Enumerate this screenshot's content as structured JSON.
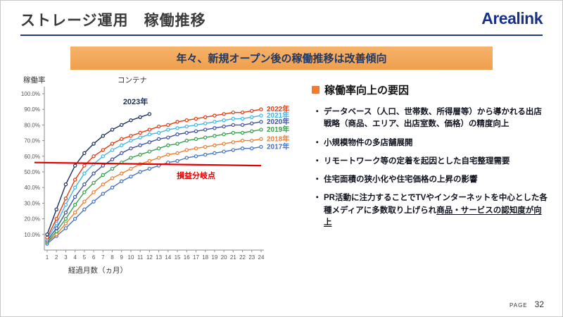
{
  "page": {
    "title": "ストレージ運用　稼働推移",
    "logo": "Arealink",
    "banner": "年々、新規オープン後の稼働推移は改善傾向",
    "footer_label": "PAGE",
    "footer_number": "32"
  },
  "chart_data": {
    "type": "line",
    "title": "コンテナ",
    "ylabel": "稼働率",
    "xlabel": "経過月数（ヵ月）",
    "ylim": [
      0,
      100
    ],
    "yticks": [
      "10.0%",
      "20.0%",
      "30.0%",
      "40.0%",
      "50.0%",
      "60.0%",
      "70.0%",
      "80.0%",
      "90.0%",
      "100.0%"
    ],
    "x": [
      1,
      2,
      3,
      4,
      5,
      6,
      7,
      8,
      9,
      10,
      11,
      12,
      13,
      14,
      15,
      16,
      17,
      18,
      19,
      20,
      21,
      22,
      23,
      24
    ],
    "series": [
      {
        "name": "2017年",
        "color": "#4472c4",
        "label_right": true,
        "values": [
          4,
          9,
          14,
          20,
          26,
          31,
          36,
          40,
          44,
          47,
          50,
          52,
          54,
          56,
          57,
          59,
          60,
          61,
          62,
          63,
          64,
          65,
          65,
          66
        ]
      },
      {
        "name": "2018年",
        "color": "#ed7d31",
        "label_right": true,
        "values": [
          5,
          10,
          17,
          24,
          31,
          37,
          42,
          46,
          49,
          52,
          55,
          57,
          59,
          61,
          62,
          64,
          65,
          66,
          67,
          68,
          69,
          70,
          70,
          71
        ]
      },
      {
        "name": "2019年",
        "color": "#34a04a",
        "label_right": true,
        "values": [
          5,
          12,
          20,
          29,
          37,
          43,
          48,
          52,
          56,
          59,
          61,
          63,
          65,
          67,
          68,
          70,
          71,
          72,
          73,
          74,
          75,
          75,
          76,
          77
        ]
      },
      {
        "name": "2020年",
        "color": "#3f51a3",
        "label_right": true,
        "values": [
          6,
          14,
          24,
          34,
          42,
          49,
          54,
          58,
          62,
          65,
          67,
          69,
          71,
          72,
          74,
          75,
          76,
          77,
          78,
          79,
          80,
          80,
          81,
          82
        ]
      },
      {
        "name": "2021年",
        "color": "#41b6e6",
        "label_right": true,
        "values": [
          7,
          17,
          29,
          40,
          49,
          55,
          60,
          64,
          67,
          70,
          72,
          74,
          75,
          77,
          78,
          79,
          80,
          81,
          82,
          83,
          84,
          84,
          85,
          86
        ]
      },
      {
        "name": "2022年",
        "color": "#e8380d",
        "label_right": true,
        "values": [
          8,
          20,
          33,
          45,
          54,
          60,
          64,
          68,
          71,
          73,
          75,
          77,
          79,
          80,
          82,
          83,
          84,
          85,
          86,
          87,
          88,
          88,
          89,
          90
        ]
      },
      {
        "name": "2023年",
        "color": "#1a2f5e",
        "annotate": true,
        "values": [
          10,
          26,
          42,
          54,
          62,
          68,
          73,
          77,
          80,
          83,
          85,
          87
        ]
      }
    ],
    "breakeven": {
      "label": "損益分岐点",
      "start": 56,
      "end": 54,
      "color": "#e60000"
    },
    "legend_position": "right"
  },
  "factors": {
    "heading": "稼働率向上の要因",
    "accent_color": "#ED7D31",
    "bullets": [
      {
        "text": "データベース（人口、世帯数、所得層等）から導かれる出店戦略（商品、エリア、出店室数、価格）の精度向上",
        "underline": ""
      },
      {
        "text": "小規模物件の多店舗展開",
        "underline": ""
      },
      {
        "text": "リモートワーク等の定着を起因とした自宅整理需要",
        "underline": ""
      },
      {
        "text": "住宅面積の狭小化や住宅価格の上昇の影響",
        "underline": ""
      },
      {
        "text": "PR活動に注力することでTVやインターネットを中心とした各種メディアに多数取り上げられ",
        "underline": "商品・サービスの認知度が向上"
      }
    ]
  }
}
